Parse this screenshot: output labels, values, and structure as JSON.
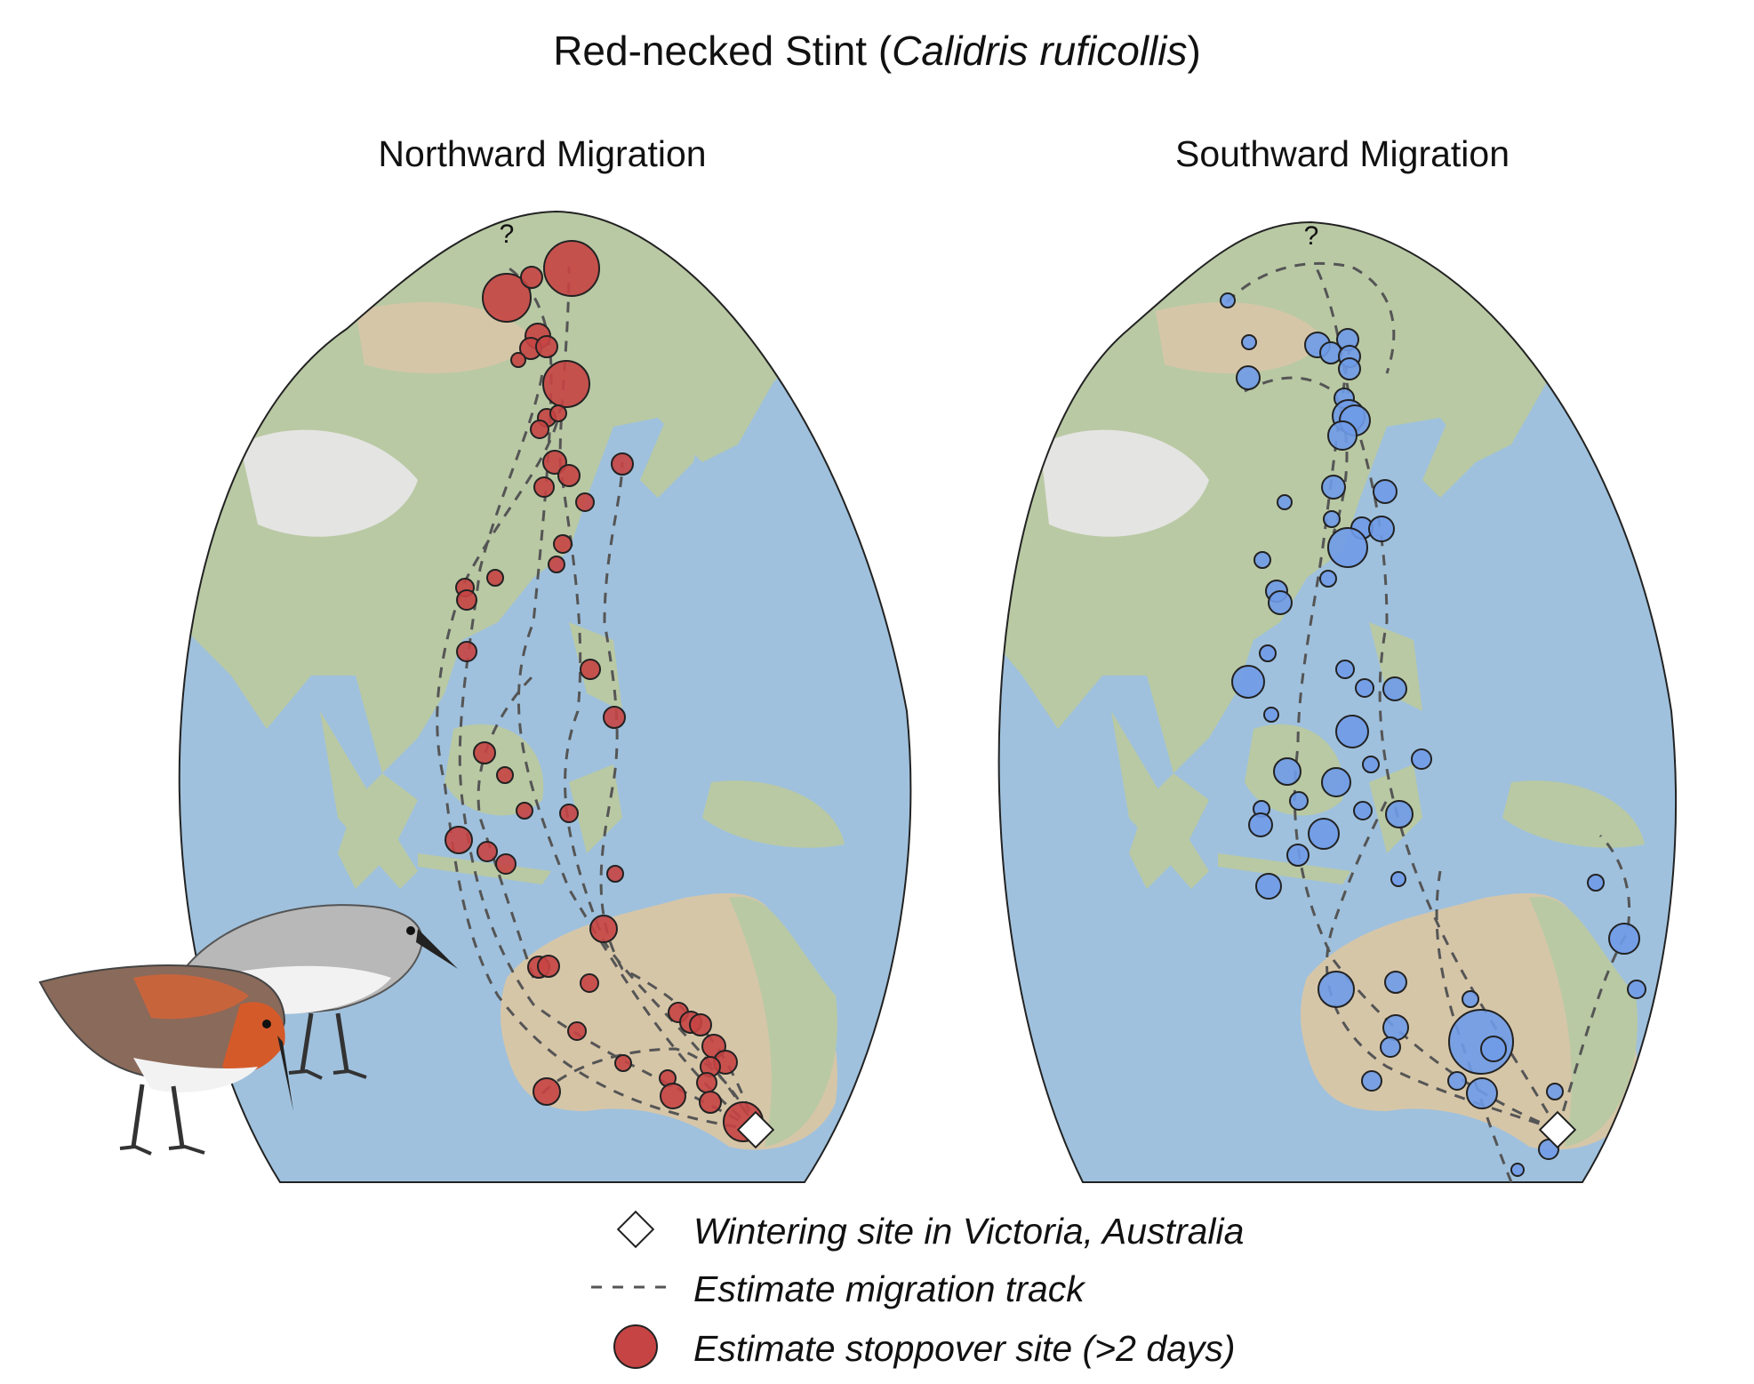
{
  "title": {
    "main": "Red-necked Stint (",
    "species": "Calidris ruficollis",
    "close": ")"
  },
  "panels": [
    {
      "id": "north",
      "title": "Northward Migration",
      "unknown_marker": "?",
      "site_color": "#c64444"
    },
    {
      "id": "south",
      "title": "Southward Migration",
      "unknown_marker": "?",
      "site_color": "#6f9be8"
    }
  ],
  "legend": {
    "wintering": "Wintering site in Victoria, Australia",
    "track": "Estimate migration track",
    "stopover": "Estimate stoppover site (>2 days)"
  },
  "colors": {
    "ocean": "#9fc1dd",
    "land": "#b9c9a4",
    "desert": "#d6c6a8",
    "track": "#555555",
    "north_sites": "#c64444",
    "south_sites": "#6f9be8"
  },
  "icons": [
    "white-diamond-icon",
    "dashed-line-icon",
    "red-circle-icon",
    "red-necked-stint-illustration"
  ]
}
